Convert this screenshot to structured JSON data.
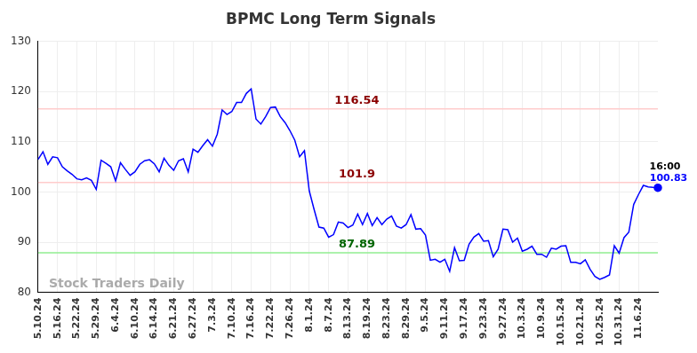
{
  "chart_data": {
    "type": "line",
    "title": "BPMC Long Term Signals",
    "categories": [
      "5.10.24",
      null,
      null,
      null,
      "5.16.24",
      null,
      null,
      null,
      "5.22.24",
      null,
      null,
      null,
      "5.29.24",
      null,
      null,
      null,
      "6.4.24",
      null,
      null,
      null,
      "6.10.24",
      null,
      null,
      null,
      "6.14.24",
      null,
      null,
      null,
      "6.21.24",
      null,
      null,
      null,
      "6.27.24",
      null,
      null,
      null,
      "7.3.24",
      null,
      null,
      null,
      "7.10.24",
      null,
      null,
      null,
      "7.16.24",
      null,
      null,
      null,
      "7.22.24",
      null,
      null,
      null,
      "7.26.24",
      null,
      null,
      null,
      "8.1.24",
      null,
      null,
      null,
      "8.7.24",
      null,
      null,
      null,
      "8.13.24",
      null,
      null,
      null,
      "8.19.24",
      null,
      null,
      null,
      "8.23.24",
      null,
      null,
      null,
      "8.29.24",
      null,
      null,
      null,
      "9.5.24",
      null,
      null,
      null,
      "9.11.24",
      null,
      null,
      null,
      "9.17.24",
      null,
      null,
      null,
      "9.23.24",
      null,
      null,
      null,
      "9.27.24",
      null,
      null,
      null,
      "10.3.24",
      null,
      null,
      null,
      "10.9.24",
      null,
      null,
      null,
      "10.15.24",
      null,
      null,
      null,
      "10.21.24",
      null,
      null,
      null,
      "10.25.24",
      null,
      null,
      null,
      "10.31.24",
      null,
      null,
      null,
      "11.6.24",
      null,
      null,
      null,
      null
    ],
    "values": [
      106.5,
      108,
      105.5,
      107,
      106.8,
      105,
      104.2,
      103.5,
      102.6,
      102.4,
      102.8,
      102.3,
      100.5,
      106.3,
      105.7,
      105,
      102.2,
      105.8,
      104.5,
      103.3,
      104,
      105.5,
      106.2,
      106.4,
      105.6,
      104,
      106.7,
      105.3,
      104.3,
      106.2,
      106.6,
      104,
      108.5,
      107.9,
      109.2,
      110.4,
      109.1,
      111.5,
      116.3,
      115.4,
      116,
      117.8,
      117.8,
      119.6,
      120.5,
      114.5,
      113.5,
      115,
      116.8,
      116.9,
      115,
      113.8,
      112.2,
      110.3,
      107,
      108.2,
      100.2,
      96.5,
      93,
      92.8,
      91,
      91.5,
      94,
      93.8,
      92.9,
      93.4,
      95.6,
      93.5,
      95.7,
      93.3,
      94.9,
      93.5,
      94.6,
      95.2,
      93.2,
      92.8,
      93.5,
      95.5,
      92.6,
      92.7,
      91.4,
      86.4,
      86.6,
      86,
      86.6,
      84.2,
      88.9,
      86.3,
      86.4,
      89.6,
      91,
      91.7,
      90.2,
      90.3,
      87.1,
      88.6,
      92.6,
      92.5,
      90,
      90.8,
      88.2,
      88.6,
      89.2,
      87.6,
      87.6,
      87,
      88.8,
      88.6,
      89.2,
      89.3,
      86,
      86,
      85.7,
      86.5,
      84.6,
      83.2,
      82.6,
      83,
      83.5,
      89.3,
      87.8,
      90.9,
      92,
      97.5,
      99.5,
      101.3,
      101,
      100.9,
      100.83
    ],
    "color": "#0000ff",
    "ylim": [
      80,
      130
    ],
    "yticks": [
      80,
      90,
      100,
      110,
      120,
      130
    ],
    "grid": true,
    "reference_lines": [
      {
        "value": 116.54,
        "color": "#ffcccc",
        "label_color": "#8b0000"
      },
      {
        "value": 101.9,
        "color": "#ffcccc",
        "label_color": "#8b0000"
      },
      {
        "value": 87.89,
        "color": "#90ee90",
        "label_color": "#006400"
      }
    ],
    "last_point_annotation": {
      "time": "16:00",
      "value": 100.83
    },
    "watermark": "Stock Traders Daily"
  }
}
